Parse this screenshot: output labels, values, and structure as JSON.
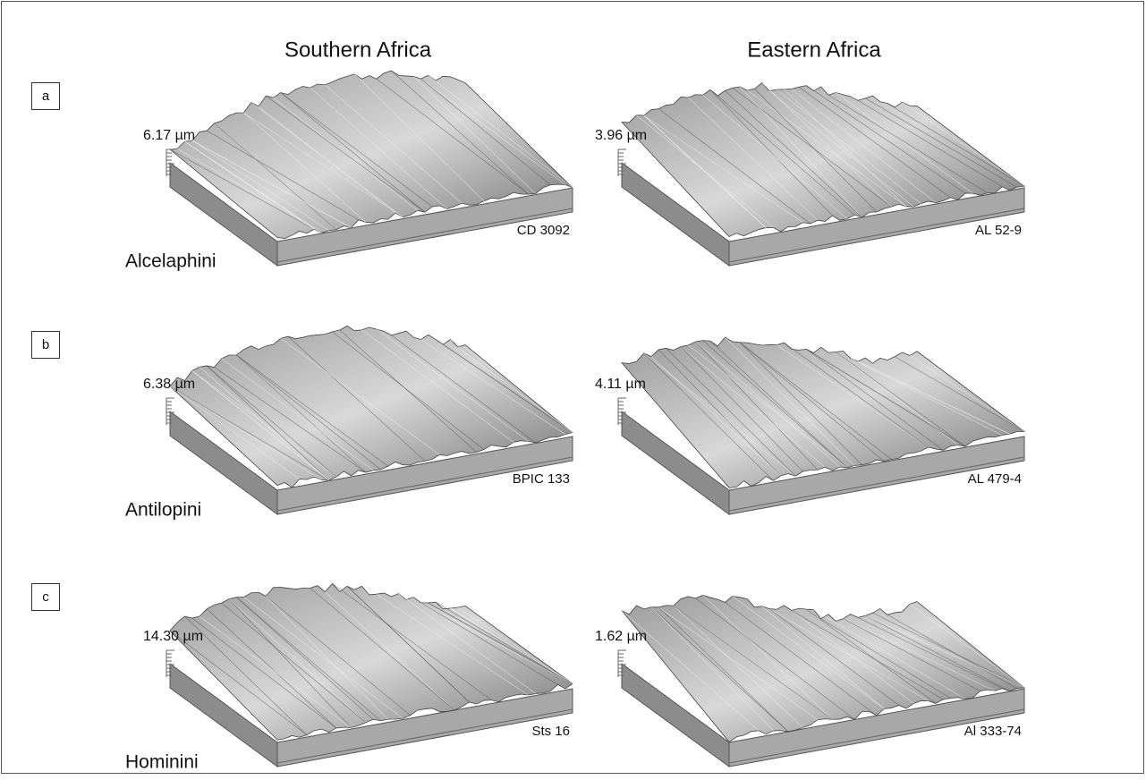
{
  "columns": [
    "Southern Africa",
    "Eastern Africa"
  ],
  "rows": [
    {
      "letter": "a",
      "tribe": "Alcelaphini",
      "panels": [
        {
          "height": "6.17 µm",
          "specimen": "CD 3092"
        },
        {
          "height": "3.96 µm",
          "specimen": "AL 52-9"
        }
      ]
    },
    {
      "letter": "b",
      "tribe": "Antilopini",
      "panels": [
        {
          "height": "6.38 µm",
          "specimen": "BPIC 133"
        },
        {
          "height": "4.11 µm",
          "specimen": "AL 479-4"
        }
      ]
    },
    {
      "letter": "c",
      "tribe": "Hominini",
      "panels": [
        {
          "height": "14.30 µm",
          "specimen": "Sts 16"
        },
        {
          "height": "1.62 µm",
          "specimen": "Al 333-74"
        }
      ]
    }
  ]
}
